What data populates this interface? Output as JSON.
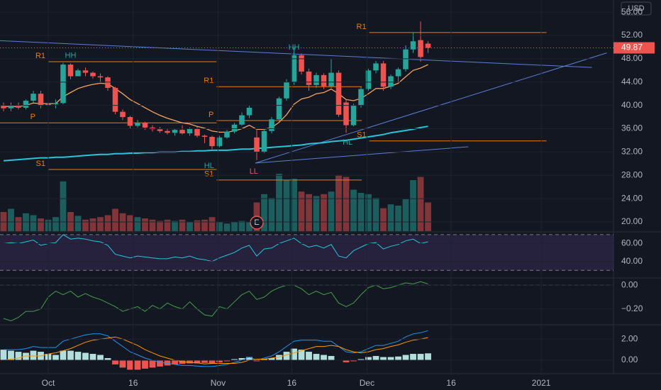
{
  "chart_data": [
    {
      "type": "candlestick",
      "currency": "USD",
      "last_price": 49.87,
      "up_color": "#26a69a",
      "down_color": "#ef5350",
      "xlim": [
        -0.476,
        81.9
      ],
      "xticks": [
        {
          "value": 6.0,
          "label": "Oct"
        },
        {
          "value": 17.4,
          "label": "16"
        },
        {
          "value": 28.8,
          "label": "Nov"
        },
        {
          "value": 38.7,
          "label": "16"
        },
        {
          "value": 48.8,
          "label": "Dec"
        },
        {
          "value": 60.1,
          "label": "16"
        },
        {
          "value": 72.2,
          "label": "2021"
        }
      ],
      "ylim": [
        18.42,
        58.08
      ],
      "yticks": [
        {
          "value": 20,
          "label": "20.00"
        },
        {
          "value": 24,
          "label": "24.00"
        },
        {
          "value": 28,
          "label": "28.00"
        },
        {
          "value": 32,
          "label": "32.00"
        },
        {
          "value": 36,
          "label": "36.00"
        },
        {
          "value": 40,
          "label": "40.00"
        },
        {
          "value": 44,
          "label": "44.00"
        },
        {
          "value": 48,
          "label": "48.00"
        },
        {
          "value": 52,
          "label": "52.00"
        },
        {
          "value": 56,
          "label": "56.00"
        }
      ],
      "grid": true,
      "open": [
        40,
        39.5,
        40,
        39.6,
        40.8,
        42,
        40,
        40.2,
        40.4,
        47,
        45,
        46,
        45.6,
        45,
        44.8,
        43,
        38.9,
        38,
        36.5,
        37,
        36.2,
        35.9,
        35.6,
        35.3,
        35.8,
        35.2,
        36,
        34.8,
        34.6,
        33,
        34.5,
        35.5,
        36.7,
        38.3,
        34.5,
        32,
        35.6,
        37.6,
        41.2,
        44,
        48.6,
        45.8,
        43.5,
        45.2,
        43.3,
        45.6,
        40.5,
        36.6,
        40,
        42.8,
        46,
        47.2,
        43.2,
        45,
        46.2,
        49.6,
        51.2,
        50.6
      ],
      "high": [
        40.5,
        40.5,
        40.5,
        41,
        42.5,
        42.5,
        40.5,
        41,
        47.3,
        47.2,
        46.3,
        46.5,
        45.8,
        45.5,
        45,
        43.2,
        39.3,
        38.2,
        37.5,
        37.2,
        36.6,
        36.3,
        36,
        36,
        36.6,
        36.2,
        36.3,
        35,
        34.8,
        34.8,
        35.8,
        37,
        38.8,
        40,
        36,
        36,
        38,
        41.5,
        44.5,
        50,
        48.9,
        46.3,
        45.6,
        45.5,
        48,
        46,
        41,
        40.3,
        43.2,
        46.3,
        47.6,
        47.6,
        45.3,
        46.5,
        50.3,
        52.5,
        54.4,
        51
      ],
      "low": [
        39,
        39,
        39.3,
        39.3,
        40.5,
        39.5,
        39.5,
        39.5,
        40.2,
        44.5,
        45,
        45,
        44.6,
        44,
        42.5,
        38.5,
        37.5,
        36,
        36.2,
        35.8,
        35.5,
        35.3,
        35,
        34.8,
        35,
        34.8,
        34.5,
        33.5,
        32.5,
        32.8,
        34.3,
        35.2,
        36.5,
        37.8,
        30.6,
        31.8,
        35.2,
        37.3,
        40.8,
        43.5,
        45.3,
        42.5,
        43,
        42.8,
        43,
        38,
        35.3,
        36.4,
        39.6,
        42.5,
        45.5,
        42.5,
        42.8,
        44,
        45.8,
        49,
        47.5,
        49
      ],
      "close": [
        39.5,
        40,
        39.6,
        40.8,
        42,
        40,
        40.2,
        40.4,
        47,
        45,
        46,
        45.6,
        45,
        44.8,
        43,
        38.9,
        38,
        36.5,
        37,
        36.2,
        35.9,
        35.6,
        35.3,
        35.8,
        35.2,
        36,
        34.8,
        34.6,
        33,
        34.5,
        35.5,
        36.7,
        38.3,
        39.6,
        32,
        35.6,
        37.6,
        41.2,
        44,
        48.6,
        45.8,
        43.5,
        45.2,
        43.3,
        45.6,
        38.4,
        36.6,
        40,
        42.8,
        46,
        47.2,
        43.2,
        45,
        46.2,
        49.6,
        51,
        48.3,
        49.87
      ],
      "volume": [
        30,
        35,
        22,
        28,
        25,
        20,
        18,
        22,
        78,
        30,
        24,
        18,
        20,
        22,
        25,
        35,
        28,
        25,
        22,
        20,
        18,
        16,
        18,
        16,
        18,
        15,
        17,
        18,
        22,
        15,
        12,
        14,
        16,
        15,
        45,
        58,
        52,
        90,
        80,
        82,
        62,
        58,
        55,
        58,
        62,
        88,
        85,
        65,
        60,
        58,
        52,
        36,
        42,
        40,
        50,
        80,
        85,
        45
      ],
      "overlays": [
        {
          "color": "#f7a35c",
          "width": 1.3,
          "values": [
            39.8,
            39.8,
            39.8,
            40,
            40.4,
            40.3,
            40.3,
            40.3,
            41.5,
            42.2,
            42.9,
            43.3,
            43.6,
            43.8,
            43.7,
            42.9,
            42,
            41,
            40.3,
            39.6,
            38.9,
            38.3,
            37.8,
            37.4,
            37,
            36.8,
            36.4,
            36.1,
            35.6,
            35.4,
            35.4,
            35.6,
            36,
            36.6,
            35.9,
            35.9,
            36.2,
            37.1,
            38.4,
            40.2,
            41.1,
            41.4,
            42,
            42.2,
            42.8,
            42,
            41,
            40.8,
            41.2,
            42,
            42.9,
            42.9,
            43.3,
            43.8,
            44.9,
            46,
            46.4,
            47
          ]
        },
        {
          "color": "#26c6da",
          "width": 2,
          "values": [
            30.5,
            30.6,
            30.7,
            30.8,
            30.9,
            31,
            31,
            31.1,
            31.1,
            31.2,
            31.3,
            31.4,
            31.5,
            31.6,
            31.6,
            31.7,
            31.7,
            31.8,
            31.8,
            31.9,
            31.9,
            32,
            32,
            32,
            32.1,
            32.1,
            32.2,
            32.2,
            32.3,
            32.3,
            32.3,
            32.4,
            32.5,
            32.5,
            32.6,
            32.7,
            32.8,
            32.9,
            33,
            33.1,
            33.2,
            33.4,
            33.5,
            33.6,
            33.8,
            33.9,
            34,
            34.2,
            34.4,
            34.6,
            34.8,
            35,
            35.3,
            35.5,
            35.7,
            35.9,
            36.2,
            36.4
          ]
        }
      ],
      "levels": [
        {
          "label": "R1",
          "value": 47.5,
          "start": 6,
          "end": 28.6
        },
        {
          "label": "P",
          "value": 37,
          "start": -0.476,
          "end": 28.6
        },
        {
          "label": "S1",
          "value": 29,
          "start": 6,
          "end": 28.6
        },
        {
          "label": "R1",
          "value": 43.2,
          "start": 28.6,
          "end": 48.1
        },
        {
          "label": "P",
          "value": 37.4,
          "start": 28.6,
          "end": 48.1
        },
        {
          "label": "S1",
          "value": 27.2,
          "start": 28.6,
          "end": 48.1
        },
        {
          "label": "R1",
          "value": 52.5,
          "start": 49.1,
          "end": 72.9
        },
        {
          "label": "S1",
          "value": 33.9,
          "start": 49.1,
          "end": 72.9
        }
      ],
      "level_color": "#f57c00",
      "trendlines": [
        {
          "color": "#5b7fd6",
          "x": [
            -0.476,
            79.0
          ],
          "y": [
            51.1,
            46.5
          ]
        },
        {
          "color": "#5b7fd6",
          "x": [
            33.8,
            81
          ],
          "y": [
            30.1,
            49
          ]
        },
        {
          "color": "#5b7fd6",
          "x": [
            33.8,
            62.4
          ],
          "y": [
            30.1,
            32.9
          ]
        }
      ],
      "pivots": [
        {
          "label": "HH",
          "x": 9,
          "y": 48.5,
          "color": "#26a69a"
        },
        {
          "label": "HH",
          "x": 39,
          "y": 49.9,
          "color": "#26a69a"
        },
        {
          "label": "HL",
          "x": 27.6,
          "y": 29.6,
          "color": "#26a69a"
        },
        {
          "label": "HL",
          "x": 46.2,
          "y": 33.6,
          "color": "#26a69a"
        },
        {
          "label": "LL",
          "x": 33.6,
          "y": 28.6,
          "color": "#ef5350"
        }
      ],
      "events": [
        {
          "label": "E",
          "x": 34
        }
      ]
    },
    {
      "type": "line",
      "color": "#26c6da",
      "ylim": [
        22.3,
        72.3
      ],
      "band": [
        30,
        70
      ],
      "band_color": "#7e57c2",
      "yticks": [
        {
          "value": 40,
          "label": "40.00"
        },
        {
          "value": 60,
          "label": "60.00"
        }
      ],
      "values": [
        60,
        61,
        60,
        62,
        64,
        58,
        60,
        61,
        70,
        65,
        66,
        65,
        63,
        62,
        58,
        48,
        46,
        44,
        46,
        45,
        44,
        43,
        43,
        45,
        44,
        46,
        43,
        42,
        40,
        44,
        47,
        50,
        55,
        58,
        46,
        54,
        55,
        60,
        63,
        66,
        60,
        56,
        58,
        55,
        59,
        46,
        44,
        52,
        56,
        60,
        61,
        54,
        57,
        59,
        63,
        65,
        60,
        62
      ]
    },
    {
      "type": "line",
      "color": "#43a047",
      "ylim": [
        -0.327,
        0.055
      ],
      "yticks": [
        {
          "value": 0,
          "label": "0.00"
        },
        {
          "value": -0.2,
          "label": "−0.20"
        }
      ],
      "values": [
        -0.28,
        -0.3,
        -0.27,
        -0.22,
        -0.22,
        -0.2,
        -0.1,
        -0.05,
        -0.08,
        -0.05,
        -0.1,
        -0.07,
        -0.1,
        -0.12,
        -0.15,
        -0.18,
        -0.22,
        -0.2,
        -0.18,
        -0.22,
        -0.17,
        -0.2,
        -0.15,
        -0.18,
        -0.2,
        -0.14,
        -0.2,
        -0.25,
        -0.26,
        -0.18,
        -0.2,
        -0.14,
        -0.08,
        -0.05,
        -0.12,
        -0.1,
        -0.05,
        -0.02,
        0,
        0,
        -0.03,
        -0.08,
        -0.05,
        -0.08,
        -0.06,
        -0.15,
        -0.18,
        -0.15,
        -0.08,
        -0.02,
        0,
        -0.03,
        -0.02,
        0,
        0.02,
        0.01,
        0.03,
        0.01
      ]
    },
    {
      "type": "macd",
      "ylim": [
        -1.21,
        3.29
      ],
      "yticks": [
        {
          "value": 0,
          "label": "0.00"
        },
        {
          "value": 2,
          "label": "2.00"
        }
      ],
      "hist_up_color": "#b2dfdb",
      "hist_down_color": "#ef5350",
      "histogram": [
        1.0,
        0.9,
        0.8,
        0.7,
        0.9,
        0.8,
        0.6,
        0.5,
        0.9,
        0.9,
        0.8,
        0.7,
        0.6,
        0.5,
        0.2,
        -0.4,
        -0.7,
        -0.9,
        -0.9,
        -0.8,
        -0.7,
        -0.6,
        -0.5,
        -0.4,
        -0.35,
        -0.3,
        -0.3,
        -0.25,
        -0.3,
        -0.2,
        -0.1,
        0.1,
        0.2,
        0.3,
        -0.1,
        0.1,
        0.2,
        0.5,
        0.8,
        1.1,
        1.0,
        0.8,
        0.6,
        0.5,
        0.4,
        0.0,
        -0.2,
        -0.1,
        0.1,
        0.3,
        0.4,
        0.3,
        0.3,
        0.35,
        0.5,
        0.6,
        0.6,
        0.65
      ],
      "lines": [
        {
          "color": "#2196f3",
          "values": [
            1.0,
            1.0,
            1.0,
            1.1,
            1.3,
            1.2,
            1.2,
            1.2,
            1.8,
            2.0,
            2.2,
            2.4,
            2.5,
            2.5,
            2.3,
            1.8,
            1.3,
            0.8,
            0.5,
            0.2,
            0,
            -0.2,
            -0.3,
            -0.4,
            -0.5,
            -0.5,
            -0.55,
            -0.6,
            -0.6,
            -0.5,
            -0.4,
            -0.2,
            0,
            0.3,
            0,
            0.2,
            0.4,
            0.8,
            1.3,
            1.8,
            1.9,
            1.9,
            1.9,
            1.8,
            1.8,
            1.3,
            0.8,
            0.7,
            0.8,
            1.1,
            1.4,
            1.4,
            1.6,
            1.8,
            2.2,
            2.5,
            2.6,
            2.8
          ]
        },
        {
          "color": "#ff9800",
          "values": [
            0.0,
            0.1,
            0.2,
            0.4,
            0.4,
            0.4,
            0.6,
            0.7,
            0.9,
            1.1,
            1.4,
            1.7,
            1.9,
            2.0,
            2.1,
            2.2,
            2.0,
            1.7,
            1.4,
            1.0,
            0.7,
            0.4,
            0.2,
            0,
            -0.15,
            -0.2,
            -0.25,
            -0.35,
            -0.3,
            -0.3,
            -0.3,
            -0.3,
            -0.2,
            0,
            0.1,
            0.1,
            0.2,
            0.3,
            0.5,
            0.7,
            0.9,
            1.1,
            1.3,
            1.3,
            1.4,
            1.3,
            1.0,
            0.8,
            0.7,
            0.8,
            1.0,
            1.1,
            1.3,
            1.45,
            1.7,
            1.9,
            2.0,
            2.15
          ]
        }
      ]
    }
  ]
}
